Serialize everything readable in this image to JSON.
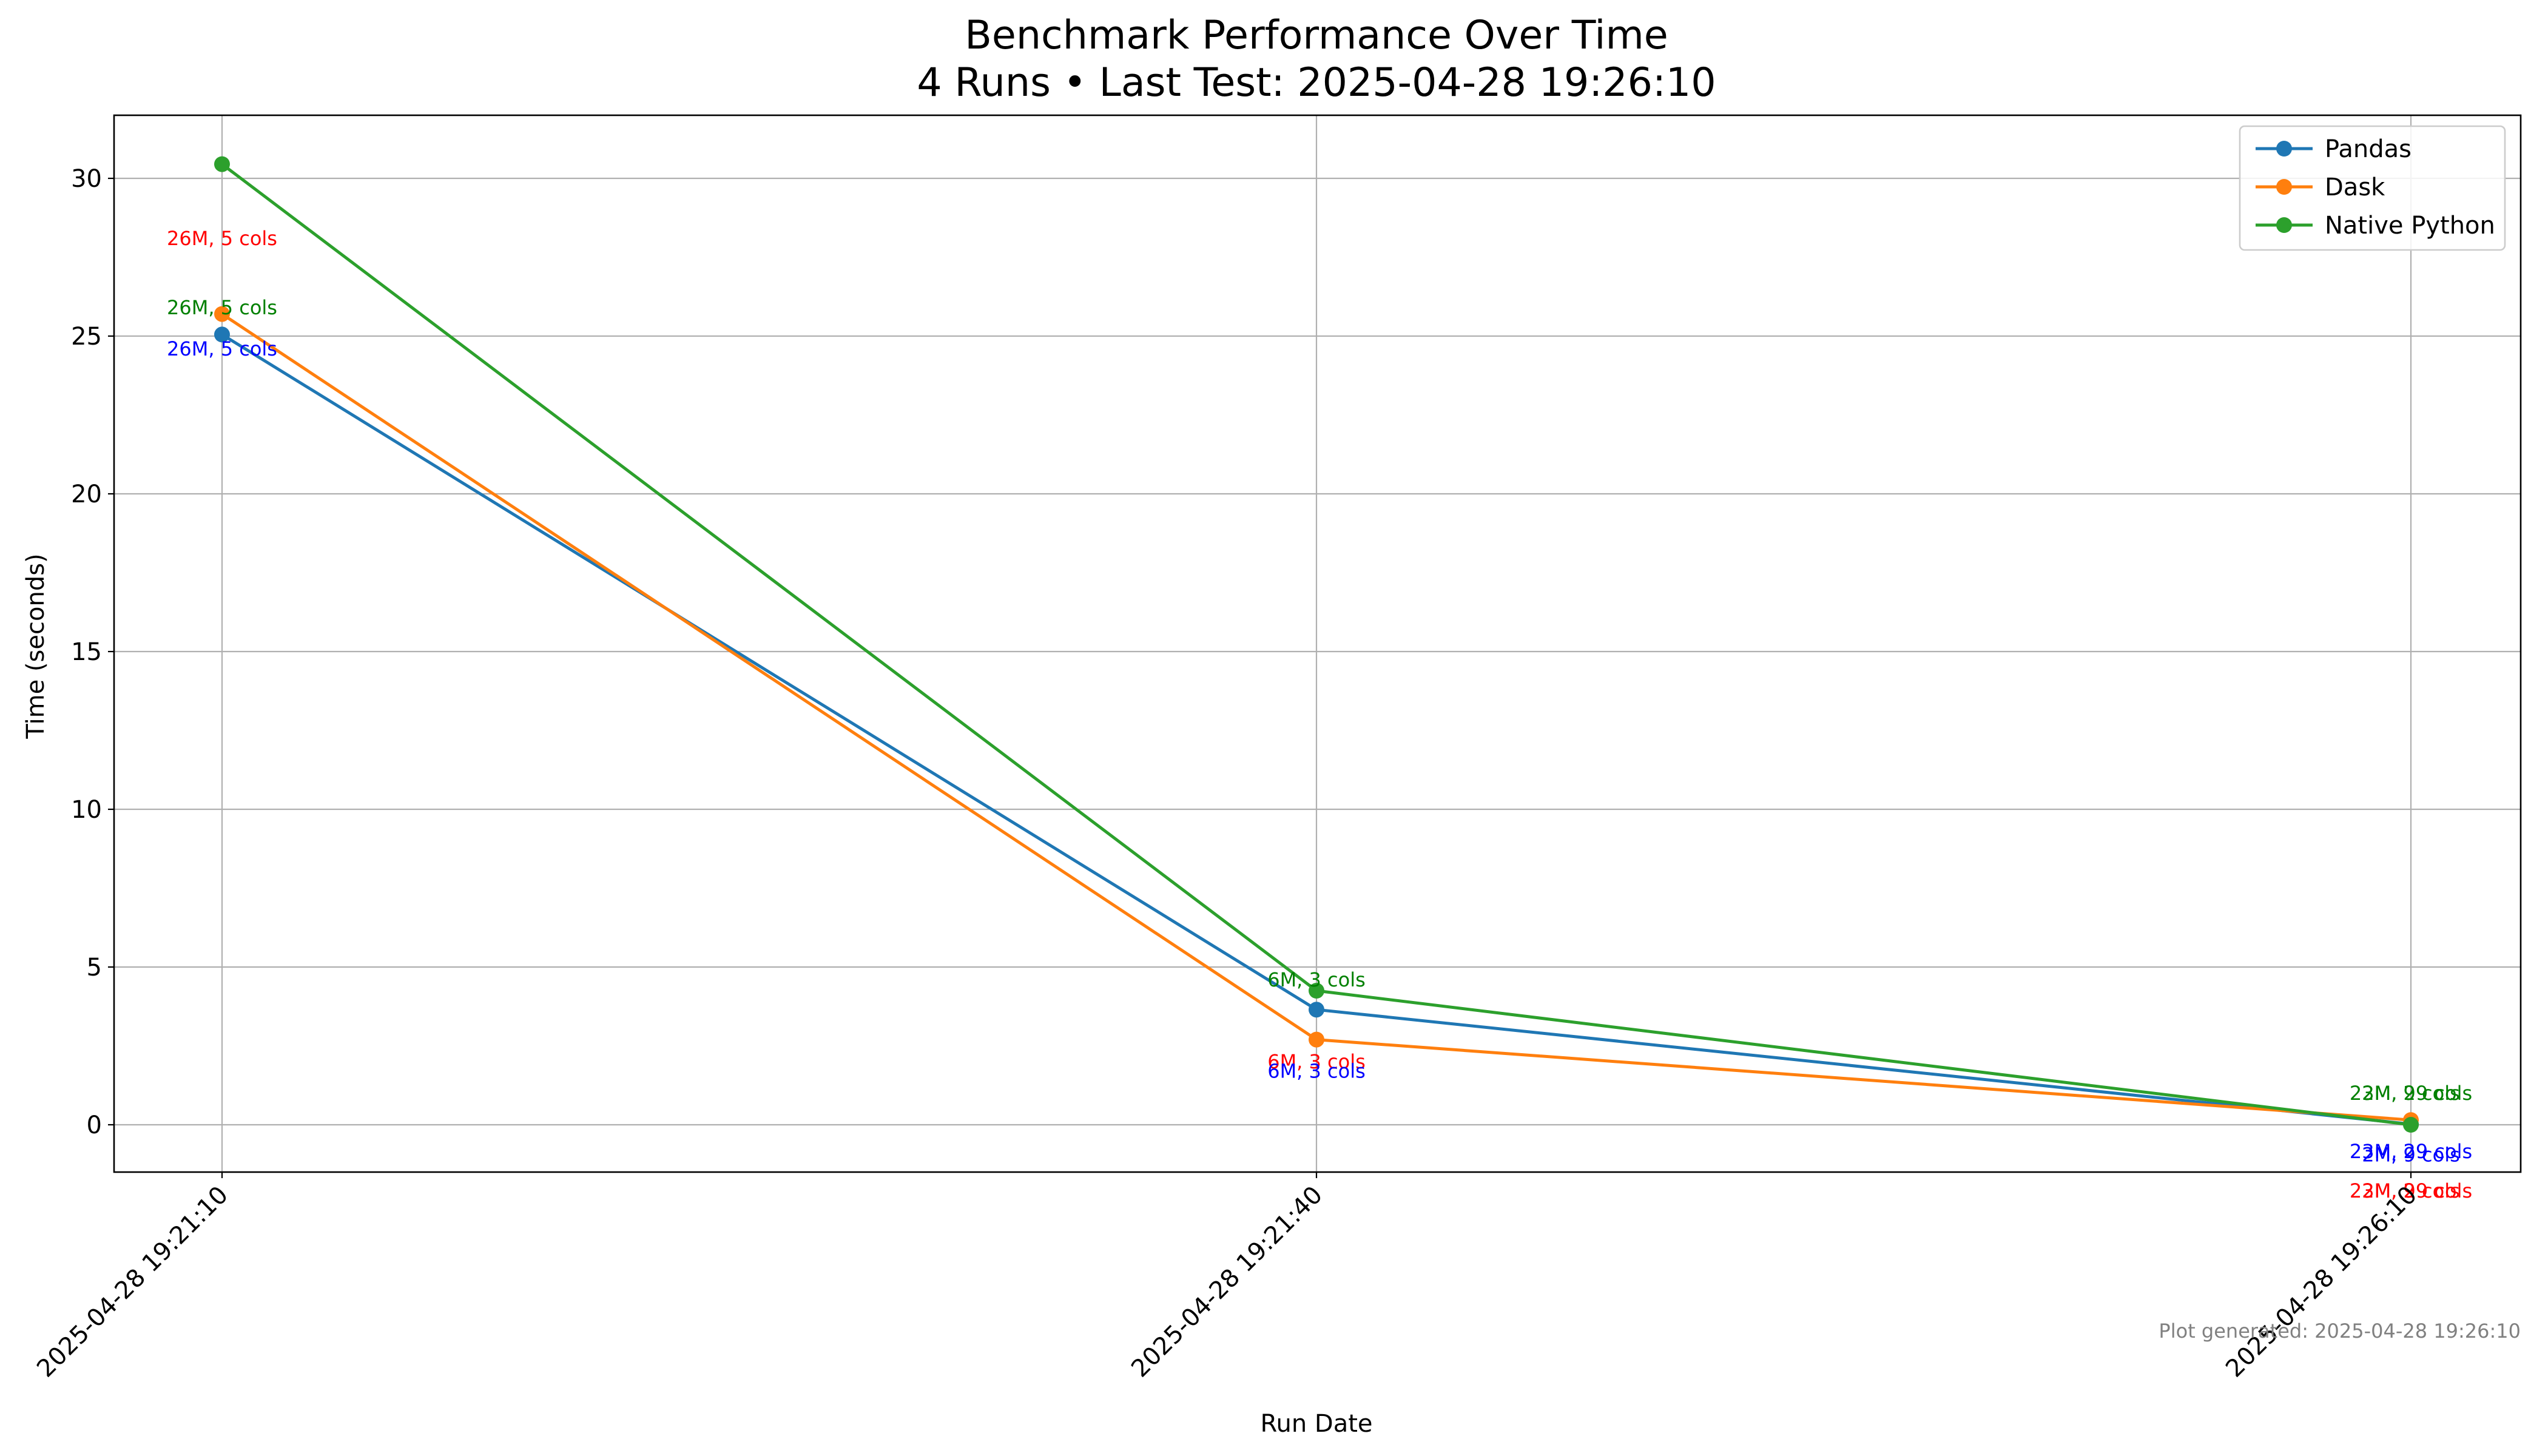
{
  "chart_data": {
    "type": "line",
    "title": "Benchmark Performance Over Time",
    "subtitle": "4 Runs • Last Test: 2025-04-28 19:26:10",
    "xlabel": "Run Date",
    "ylabel": "Time (seconds)",
    "x": [
      "2025-04-28 19:21:10",
      "2025-04-28 19:21:40",
      "2025-04-28 19:26:10"
    ],
    "ylim": [
      -1.5,
      32
    ],
    "yticks": [
      0,
      5,
      10,
      15,
      20,
      25,
      30
    ],
    "grid": true,
    "legend_position": "top-right",
    "series": [
      {
        "name": "Pandas",
        "color": "#1f77b4",
        "values": [
          25.05,
          3.65,
          0.02
        ]
      },
      {
        "name": "Dask",
        "color": "#ff7f0e",
        "values": [
          25.7,
          2.7,
          0.15
        ]
      },
      {
        "name": "Native Python",
        "color": "#2ca02c",
        "values": [
          30.45,
          4.25,
          0.0
        ]
      }
    ],
    "annotations": [
      {
        "text": "26M, 5 cols",
        "color": "#ff0000",
        "x_index": 0,
        "y": 28.1
      },
      {
        "text": "26M, 5 cols",
        "color": "#008000",
        "x_index": 0,
        "y": 25.9
      },
      {
        "text": "26M, 5 cols",
        "color": "#0000ff",
        "x_index": 0,
        "y": 24.6
      },
      {
        "text": "6M, 3 cols",
        "color": "#008000",
        "x_index": 1,
        "y": 4.6
      },
      {
        "text": "6M, 3 cols",
        "color": "#ff0000",
        "x_index": 1,
        "y": 2.0
      },
      {
        "text": "6M, 3 cols",
        "color": "#0000ff",
        "x_index": 1,
        "y": 1.7
      },
      {
        "text": "2M, 9 cols",
        "color": "#008000",
        "x_index": 2,
        "y": 1.0
      },
      {
        "text": "23M, 29 cols",
        "color": "#008000",
        "x_index": 2,
        "y": 1.0
      },
      {
        "text": "23M, 29 cols",
        "color": "#0000ff",
        "x_index": 2,
        "y": -0.85
      },
      {
        "text": "2M, 9 cols",
        "color": "#0000ff",
        "x_index": 2,
        "y": -0.95
      },
      {
        "text": "2M, 9 cols",
        "color": "#ff0000",
        "x_index": 2,
        "y": -2.1
      },
      {
        "text": "23M, 29 cols",
        "color": "#ff0000",
        "x_index": 2,
        "y": -2.1
      }
    ]
  },
  "footer": {
    "generated_text": "Plot generated: 2025-04-28 19:26:10",
    "color": "#808080"
  }
}
